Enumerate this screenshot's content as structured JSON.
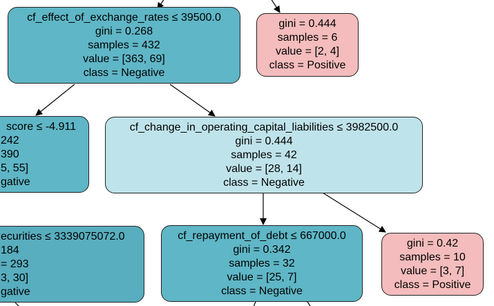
{
  "colors": {
    "deep_teal": "#5fb6c6",
    "mid_teal": "#58adbe",
    "light_teal": "#bfe3ea",
    "pink": "#f4bcbc",
    "edge": "#000000"
  },
  "nodes": {
    "root_fx": {
      "split": "cf_effect_of_exchange_rates ≤ 39500.0",
      "gini": "gini = 0.268",
      "samples": "samples = 432",
      "value": "value = [363, 69]",
      "class": "class = Negative"
    },
    "leaf_top_right": {
      "gini": "gini = 0.444",
      "samples": "samples = 6",
      "value": "value = [2, 4]",
      "class": "class = Positive"
    },
    "left_score": {
      "split": "score ≤ -4.911",
      "gini": "242",
      "samples": "390",
      "value": "5, 55]",
      "class": "gative"
    },
    "mid_liab": {
      "split": "cf_change_in_operating_capital_liabilities ≤ 3982500.0",
      "gini": "gini = 0.444",
      "samples": "samples = 42",
      "value": "value = [28, 14]",
      "class": "class = Negative"
    },
    "bottom_left_sec": {
      "split": "ecurities ≤ 3339075072.0",
      "gini": "184",
      "samples": "= 293",
      "value": "3, 30]",
      "class": "gative"
    },
    "bottom_debt": {
      "split": "cf_repayment_of_debt ≤ 667000.0",
      "gini": "gini = 0.342",
      "samples": "samples = 32",
      "value": "value = [25, 7]",
      "class": "class = Negative"
    },
    "leaf_bottom_right": {
      "gini": "gini = 0.42",
      "samples": "samples = 10",
      "value": "value = [3, 7]",
      "class": "class = Positive"
    }
  }
}
